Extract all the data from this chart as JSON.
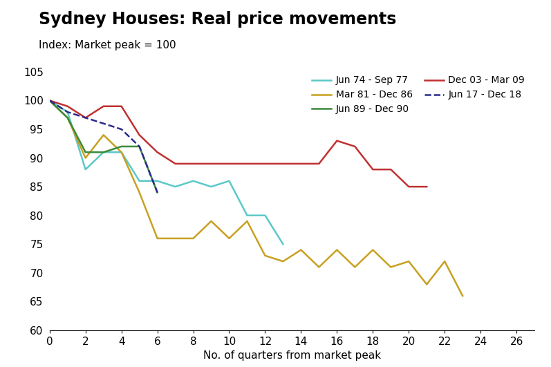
{
  "title": "Sydney Houses: Real price movements",
  "subtitle": "Index: Market peak = 100",
  "xlabel": "No. of quarters from market peak",
  "xlim": [
    0,
    27
  ],
  "ylim": [
    60,
    106
  ],
  "xticks": [
    0,
    2,
    4,
    6,
    8,
    10,
    12,
    14,
    16,
    18,
    20,
    22,
    24,
    26
  ],
  "yticks": [
    60,
    65,
    70,
    75,
    80,
    85,
    90,
    95,
    100,
    105
  ],
  "series": [
    {
      "label": "Jun 74 - Sep 77",
      "color": "#5BC8C8",
      "linestyle": "solid",
      "linewidth": 1.8,
      "x": [
        0,
        1,
        2,
        3,
        4,
        5,
        6,
        7,
        8,
        9,
        10,
        11,
        12,
        13
      ],
      "y": [
        100,
        98,
        88,
        91,
        91,
        86,
        86,
        85,
        86,
        85,
        86,
        80,
        80,
        75
      ]
    },
    {
      "label": "Mar 81 - Dec 86",
      "color": "#C8A020",
      "linestyle": "solid",
      "linewidth": 1.8,
      "x": [
        0,
        1,
        2,
        3,
        4,
        5,
        6,
        7,
        8,
        9,
        10,
        11,
        12,
        13,
        14,
        15,
        16,
        17,
        18,
        19,
        20,
        21,
        22,
        23
      ],
      "y": [
        100,
        97,
        90,
        94,
        91,
        84,
        76,
        76,
        76,
        79,
        76,
        79,
        73,
        72,
        74,
        71,
        74,
        71,
        74,
        71,
        72,
        68,
        72,
        66
      ]
    },
    {
      "label": "Jun 89 - Dec 90",
      "color": "#3A8A3A",
      "linestyle": "solid",
      "linewidth": 1.8,
      "x": [
        0,
        1,
        2,
        3,
        4,
        5,
        6
      ],
      "y": [
        100,
        97,
        91,
        91,
        92,
        92,
        84
      ]
    },
    {
      "label": "Dec 03 - Mar 09",
      "color": "#C03030",
      "linestyle": "solid",
      "linewidth": 1.8,
      "x": [
        0,
        1,
        2,
        3,
        4,
        5,
        6,
        7,
        8,
        9,
        10,
        11,
        12,
        13,
        14,
        15,
        16,
        17,
        18,
        19,
        20,
        21
      ],
      "y": [
        100,
        99,
        97,
        99,
        99,
        94,
        91,
        89,
        89,
        89,
        89,
        89,
        89,
        89,
        89,
        89,
        93,
        92,
        88,
        88,
        85,
        85
      ]
    },
    {
      "label": "Jun 17 - Dec 18",
      "color": "#2B2B8C",
      "linestyle": "dashed",
      "linewidth": 1.8,
      "x": [
        0,
        1,
        2,
        3,
        4,
        5,
        6
      ],
      "y": [
        100,
        98,
        97,
        96,
        95,
        92,
        84
      ]
    }
  ],
  "background_color": "#ffffff",
  "title_fontsize": 17,
  "subtitle_fontsize": 11,
  "axis_fontsize": 11,
  "legend_fontsize": 10
}
